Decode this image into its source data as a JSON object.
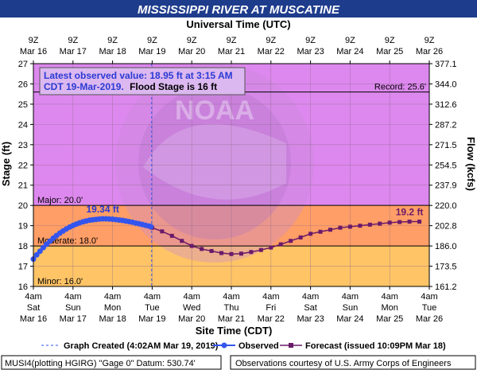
{
  "colors": {
    "title_bg": "#1e3c8c",
    "major": "#ff7f7f",
    "moderate": "#ff9e66",
    "minor": "#ffc466",
    "above": "#dd88ee",
    "observed": "#3355ee",
    "forecast": "#6a1a6a",
    "label_blue": "#2a3ad4"
  },
  "chart_data": {
    "type": "line",
    "title": "MISSISSIPPI RIVER AT MUSCATINE",
    "top_axis_title": "Universal Time (UTC)",
    "xlabel": "Site Time (CDT)",
    "ylabel": "Stage (ft)",
    "y2label": "Flow (kcfs)",
    "ylim": [
      16,
      27
    ],
    "yticks": [
      "16",
      "17",
      "18",
      "19",
      "20",
      "21",
      "22",
      "23",
      "24",
      "25",
      "26",
      "27"
    ],
    "y2ticks": [
      "161.2",
      "173.5",
      "186.0",
      "202.8",
      "220.0",
      "237.9",
      "254.5",
      "271.5",
      "287.2",
      "312.6",
      "344.0",
      "377.1"
    ],
    "xlim": [
      0,
      240
    ],
    "xticks": [
      {
        "t": 0,
        "line1": "4am",
        "line2": "Sat",
        "line3": "Mar 16"
      },
      {
        "t": 24,
        "line1": "4am",
        "line2": "Sun",
        "line3": "Mar 17"
      },
      {
        "t": 48,
        "line1": "4am",
        "line2": "Mon",
        "line3": "Mar 18"
      },
      {
        "t": 72,
        "line1": "4am",
        "line2": "Tue",
        "line3": "Mar 19"
      },
      {
        "t": 96,
        "line1": "4am",
        "line2": "Wed",
        "line3": "Mar 20"
      },
      {
        "t": 120,
        "line1": "4am",
        "line2": "Thu",
        "line3": "Mar 21"
      },
      {
        "t": 144,
        "line1": "4am",
        "line2": "Fri",
        "line3": "Mar 22"
      },
      {
        "t": 168,
        "line1": "4am",
        "line2": "Sat",
        "line3": "Mar 23"
      },
      {
        "t": 192,
        "line1": "4am",
        "line2": "Sun",
        "line3": "Mar 24"
      },
      {
        "t": 216,
        "line1": "4am",
        "line2": "Mon",
        "line3": "Mar 25"
      },
      {
        "t": 240,
        "line1": "4am",
        "line2": "Tue",
        "line3": "Mar 26"
      }
    ],
    "top_ticks": [
      {
        "t": 0,
        "line1": "9Z",
        "line2": "Mar 16"
      },
      {
        "t": 24,
        "line1": "9Z",
        "line2": "Mar 17"
      },
      {
        "t": 48,
        "line1": "9Z",
        "line2": "Mar 18"
      },
      {
        "t": 72,
        "line1": "9Z",
        "line2": "Mar 19"
      },
      {
        "t": 96,
        "line1": "9Z",
        "line2": "Mar 20"
      },
      {
        "t": 120,
        "line1": "9Z",
        "line2": "Mar 21"
      },
      {
        "t": 144,
        "line1": "9Z",
        "line2": "Mar 22"
      },
      {
        "t": 168,
        "line1": "9Z",
        "line2": "Mar 23"
      },
      {
        "t": 192,
        "line1": "9Z",
        "line2": "Mar 24"
      },
      {
        "t": 216,
        "line1": "9Z",
        "line2": "Mar 25"
      },
      {
        "t": 240,
        "line1": "9Z",
        "line2": "Mar 26"
      }
    ],
    "flood_categories": [
      {
        "name": "minor",
        "label": "Minor: 16.0'",
        "from": 16,
        "to": 18
      },
      {
        "name": "moderate",
        "label": "Moderate: 18.0'",
        "from": 18,
        "to": 20
      },
      {
        "name": "major",
        "label": "Major: 20.0'",
        "from": 20,
        "to": 27
      }
    ],
    "record": {
      "label": "Record: 25.6'",
      "value": 25.6
    },
    "graph_created_t": 71.7,
    "info_box": {
      "line1": "Latest observed value: 18.95 ft at 3:15 AM",
      "line2a": "CDT 19-Mar-2019.",
      "line2b": "Flood Stage is 16 ft"
    },
    "observed_peak_label": "19.34 ft",
    "forecast_end_label": "19.2 ft",
    "observed": {
      "x": [
        0,
        2,
        4,
        6,
        8,
        10,
        12,
        14,
        16,
        18,
        20,
        22,
        24,
        26,
        28,
        30,
        32,
        34,
        36,
        38,
        40,
        42,
        44,
        46,
        48,
        50,
        52,
        54,
        56,
        58,
        60,
        62,
        64,
        66,
        68,
        70,
        71.2
      ],
      "y": [
        17.35,
        17.56,
        17.74,
        17.92,
        18.08,
        18.23,
        18.38,
        18.51,
        18.63,
        18.74,
        18.84,
        18.93,
        19.01,
        19.08,
        19.14,
        19.19,
        19.23,
        19.27,
        19.29,
        19.31,
        19.33,
        19.34,
        19.34,
        19.33,
        19.32,
        19.3,
        19.28,
        19.26,
        19.23,
        19.2,
        19.17,
        19.13,
        19.1,
        19.06,
        19.02,
        18.98,
        18.95
      ]
    },
    "forecast": {
      "x": [
        72,
        78,
        84,
        90,
        96,
        102,
        108,
        114,
        120,
        126,
        132,
        138,
        144,
        150,
        156,
        162,
        168,
        174,
        180,
        186,
        192,
        198,
        204,
        210,
        216,
        222,
        228,
        234
      ],
      "y": [
        18.9,
        18.72,
        18.5,
        18.25,
        18.0,
        17.85,
        17.75,
        17.65,
        17.6,
        17.62,
        17.7,
        17.8,
        17.92,
        18.08,
        18.25,
        18.42,
        18.6,
        18.7,
        18.8,
        18.9,
        18.95,
        19.0,
        19.05,
        19.1,
        19.15,
        19.18,
        19.2,
        19.2
      ]
    }
  },
  "legend": {
    "graph_created": "Graph Created (4:02AM Mar 19, 2019)",
    "observed": "Observed",
    "forecast": "Forecast (issued 10:09PM Mar 18)"
  },
  "footer": {
    "left": "MUSI4(plotting HGIRG) \"Gage 0\" Datum: 530.74'",
    "right": "Observations courtesy of U.S. Army Corps of Engineers"
  }
}
